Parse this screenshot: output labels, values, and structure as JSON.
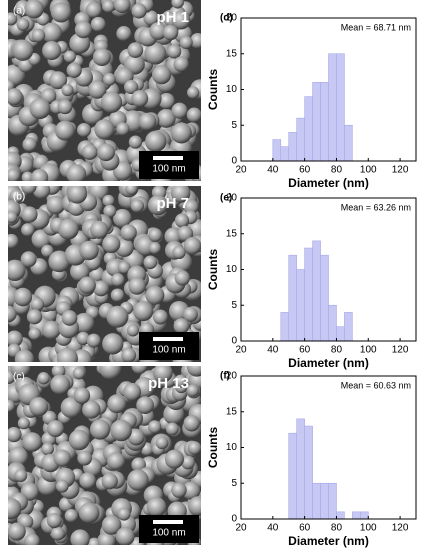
{
  "images": [
    {
      "label": "(a)",
      "condition": "pH 1",
      "scale_bar": "100 nm"
    },
    {
      "label": "(b)",
      "condition": "pH 7",
      "scale_bar": "100 nm"
    },
    {
      "label": "(c)",
      "condition": "pH 13",
      "scale_bar": "100 nm"
    }
  ],
  "chart_data": [
    {
      "type": "histogram",
      "panel_label": "(d)",
      "annotation": "Mean = 68.71 nm",
      "xlabel": "Diameter (nm)",
      "ylabel": "Counts",
      "bins": [
        40,
        45,
        50,
        55,
        60,
        65,
        70,
        75,
        80,
        85,
        90
      ],
      "counts": [
        3,
        2,
        4,
        6,
        9,
        11,
        11,
        15,
        15,
        5,
        1
      ],
      "color": "#c8c8f5",
      "xlim": [
        20,
        130
      ],
      "xticks": [
        20,
        40,
        60,
        80,
        100,
        120
      ],
      "ylim": [
        0,
        20
      ],
      "yticks": [
        0,
        5,
        10,
        15,
        20
      ]
    },
    {
      "type": "histogram",
      "panel_label": "(e)",
      "annotation": "Mean = 63.26 nm",
      "xlabel": "Diameter (nm)",
      "ylabel": "Counts",
      "bins": [
        45,
        50,
        55,
        60,
        65,
        70,
        75,
        80,
        85,
        90
      ],
      "counts": [
        4,
        12,
        10,
        13,
        14,
        12,
        5,
        2,
        4
      ],
      "color": "#c8c8f5",
      "xlim": [
        20,
        130
      ],
      "xticks": [
        20,
        40,
        60,
        80,
        100,
        120
      ],
      "ylim": [
        0,
        20
      ],
      "yticks": [
        0,
        5,
        10,
        15,
        20
      ]
    },
    {
      "type": "histogram",
      "panel_label": "(f)",
      "annotation": "Mean = 60.63 nm",
      "xlabel": "Diameter (nm)",
      "ylabel": "Counts",
      "bins": [
        50,
        55,
        60,
        65,
        70,
        75,
        80,
        85,
        90,
        95,
        100
      ],
      "counts": [
        12,
        14,
        13,
        5,
        5,
        5,
        1,
        0,
        1,
        1
      ],
      "color": "#c8c8f5",
      "xlim": [
        20,
        130
      ],
      "xticks": [
        20,
        40,
        60,
        80,
        100,
        120
      ],
      "ylim": [
        0,
        20
      ],
      "yticks": [
        0,
        5,
        10,
        15,
        20
      ]
    }
  ]
}
